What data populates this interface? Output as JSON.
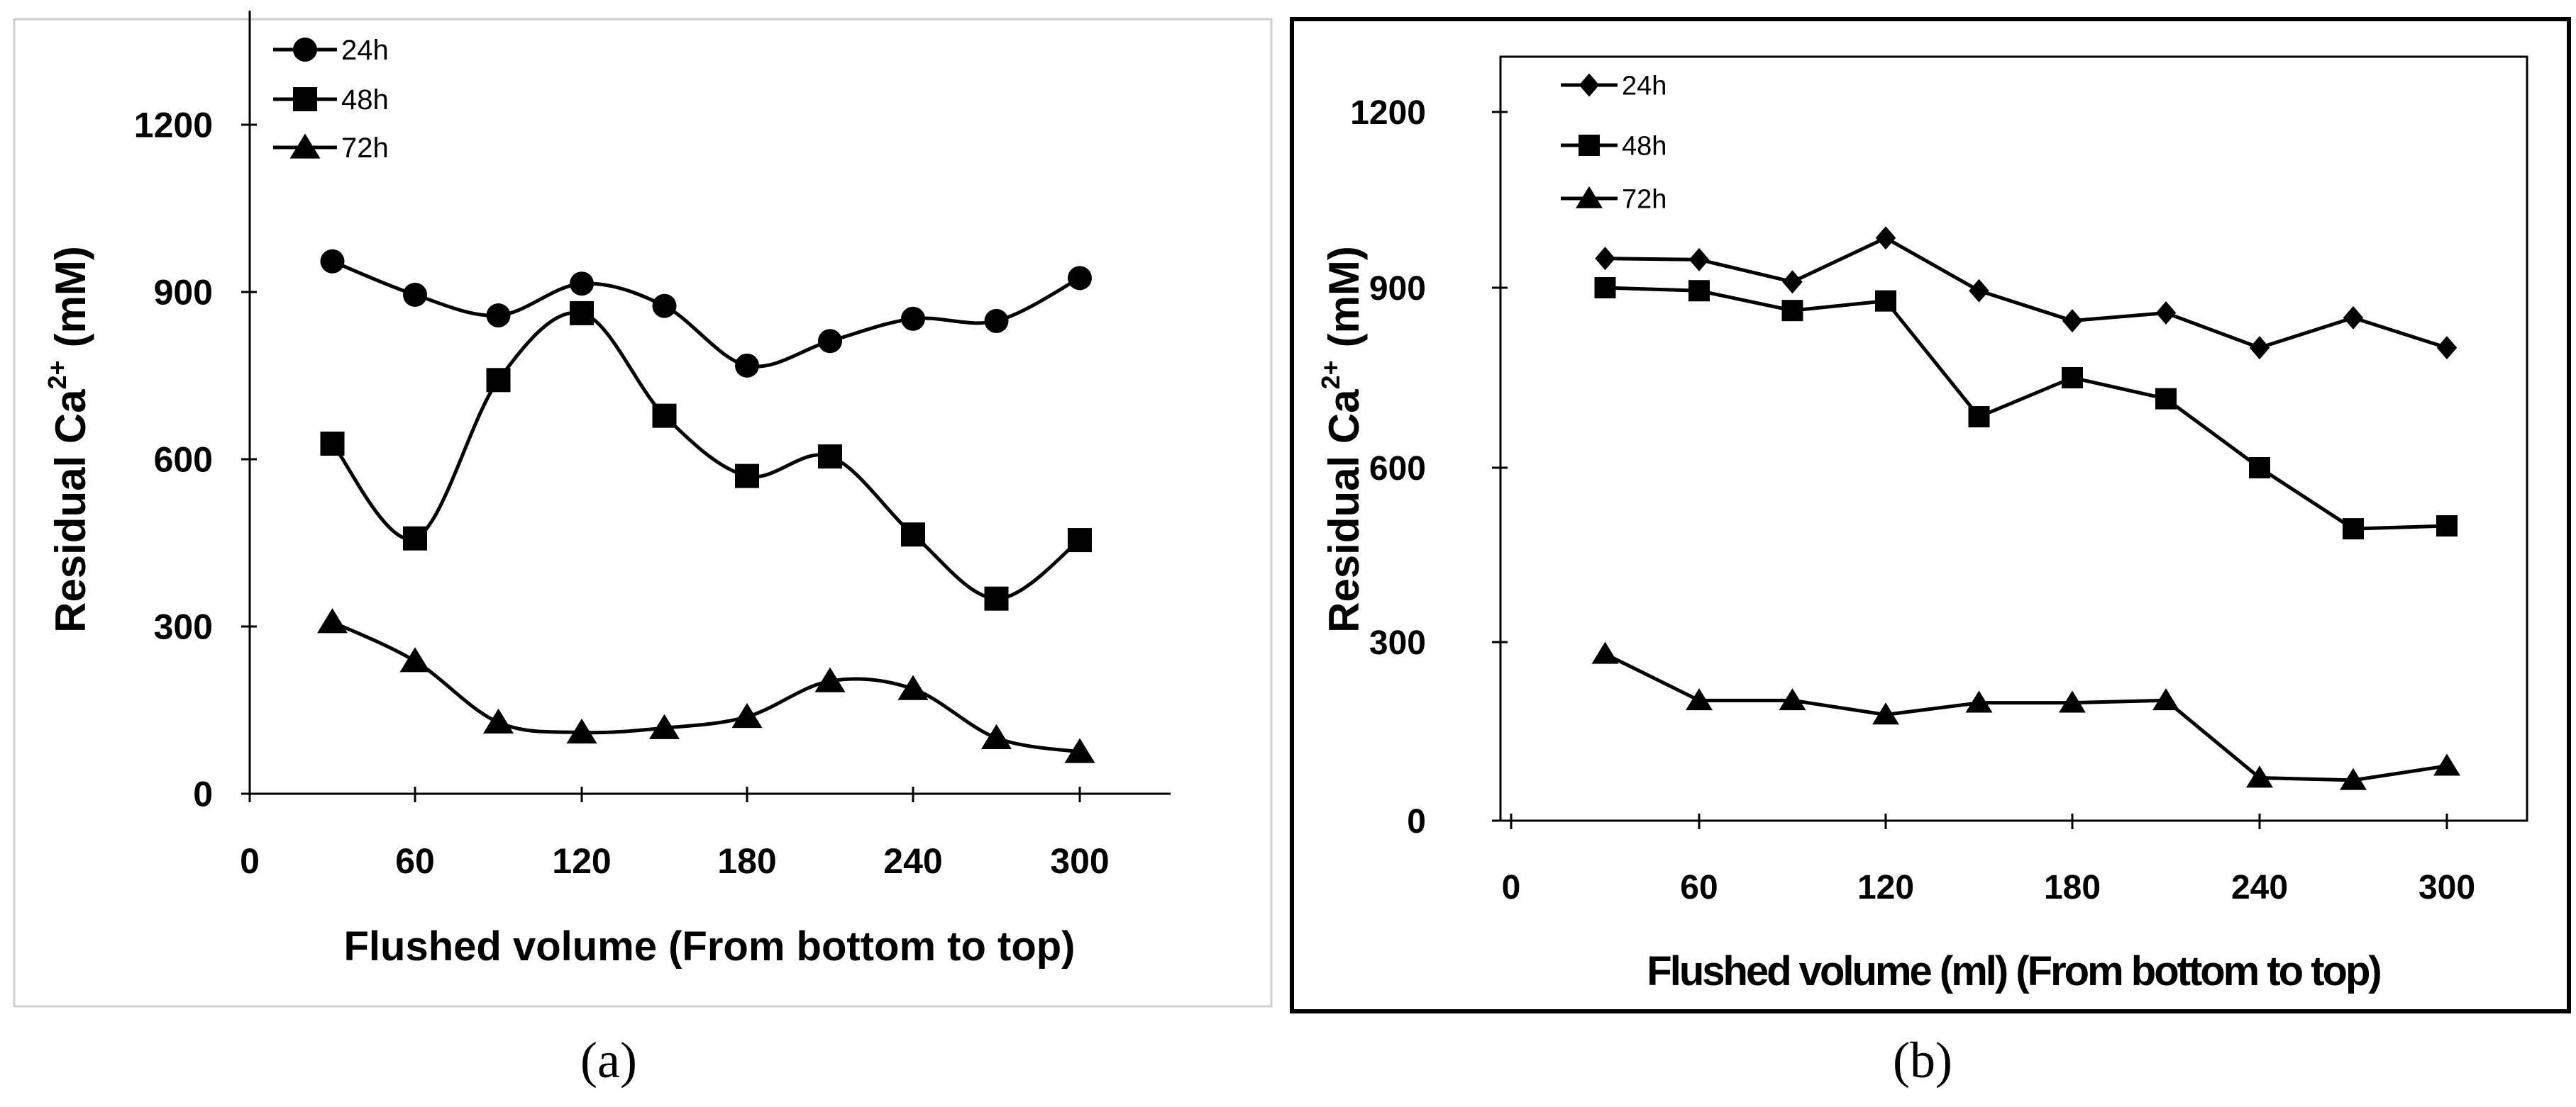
{
  "charts_meta": {
    "captions": [
      "(a)",
      "(b)"
    ]
  },
  "chart_data": [
    {
      "type": "line",
      "title": "",
      "xlabel": "Flushed volume (From bottom to top)",
      "ylabel_main": "Residual Ca",
      "ylabel_sup": "2+",
      "ylabel_unit": "(mM)",
      "xlim": [
        0,
        330
      ],
      "ylim": [
        0,
        1320
      ],
      "xticks": [
        0,
        60,
        120,
        180,
        240,
        300
      ],
      "yticks": [
        0,
        300,
        600,
        900,
        1200
      ],
      "grid": false,
      "legend_position": "top-left",
      "smooth": true,
      "x": [
        30,
        60,
        90,
        120,
        150,
        180,
        210,
        240,
        270,
        300
      ],
      "series": [
        {
          "name": "24h",
          "marker": "circle",
          "values": [
            955,
            895,
            858,
            915,
            875,
            768,
            812,
            852,
            848,
            925
          ]
        },
        {
          "name": "48h",
          "marker": "square",
          "values": [
            628,
            458,
            742,
            862,
            678,
            570,
            605,
            465,
            350,
            455
          ]
        },
        {
          "name": "72h",
          "marker": "triangle",
          "values": [
            308,
            238,
            128,
            110,
            118,
            138,
            202,
            188,
            100,
            75
          ]
        }
      ]
    },
    {
      "type": "line",
      "title": "",
      "xlabel": "Flushed volume (ml) (From bottom to top)",
      "ylabel_main": "Residual Ca",
      "ylabel_sup": "2+",
      "ylabel_unit": "(mM)",
      "xlim": [
        0,
        330
      ],
      "ylim": [
        0,
        1320
      ],
      "xticks": [
        0,
        60,
        120,
        180,
        240,
        300
      ],
      "yticks": [
        0,
        300,
        600,
        900,
        1200
      ],
      "grid": false,
      "legend_position": "top-left",
      "smooth": false,
      "x": [
        30,
        60,
        90,
        120,
        150,
        180,
        210,
        240,
        270,
        300
      ],
      "series": [
        {
          "name": "24h",
          "marker": "diamond",
          "values": [
            950,
            948,
            910,
            985,
            895,
            845,
            858,
            800,
            850,
            800
          ]
        },
        {
          "name": "48h",
          "marker": "square",
          "values": [
            900,
            895,
            862,
            878,
            685,
            750,
            715,
            600,
            495,
            500
          ]
        },
        {
          "name": "72h",
          "marker": "triangle",
          "values": [
            280,
            202,
            202,
            178,
            198,
            198,
            202,
            72,
            68,
            92
          ]
        }
      ]
    }
  ]
}
